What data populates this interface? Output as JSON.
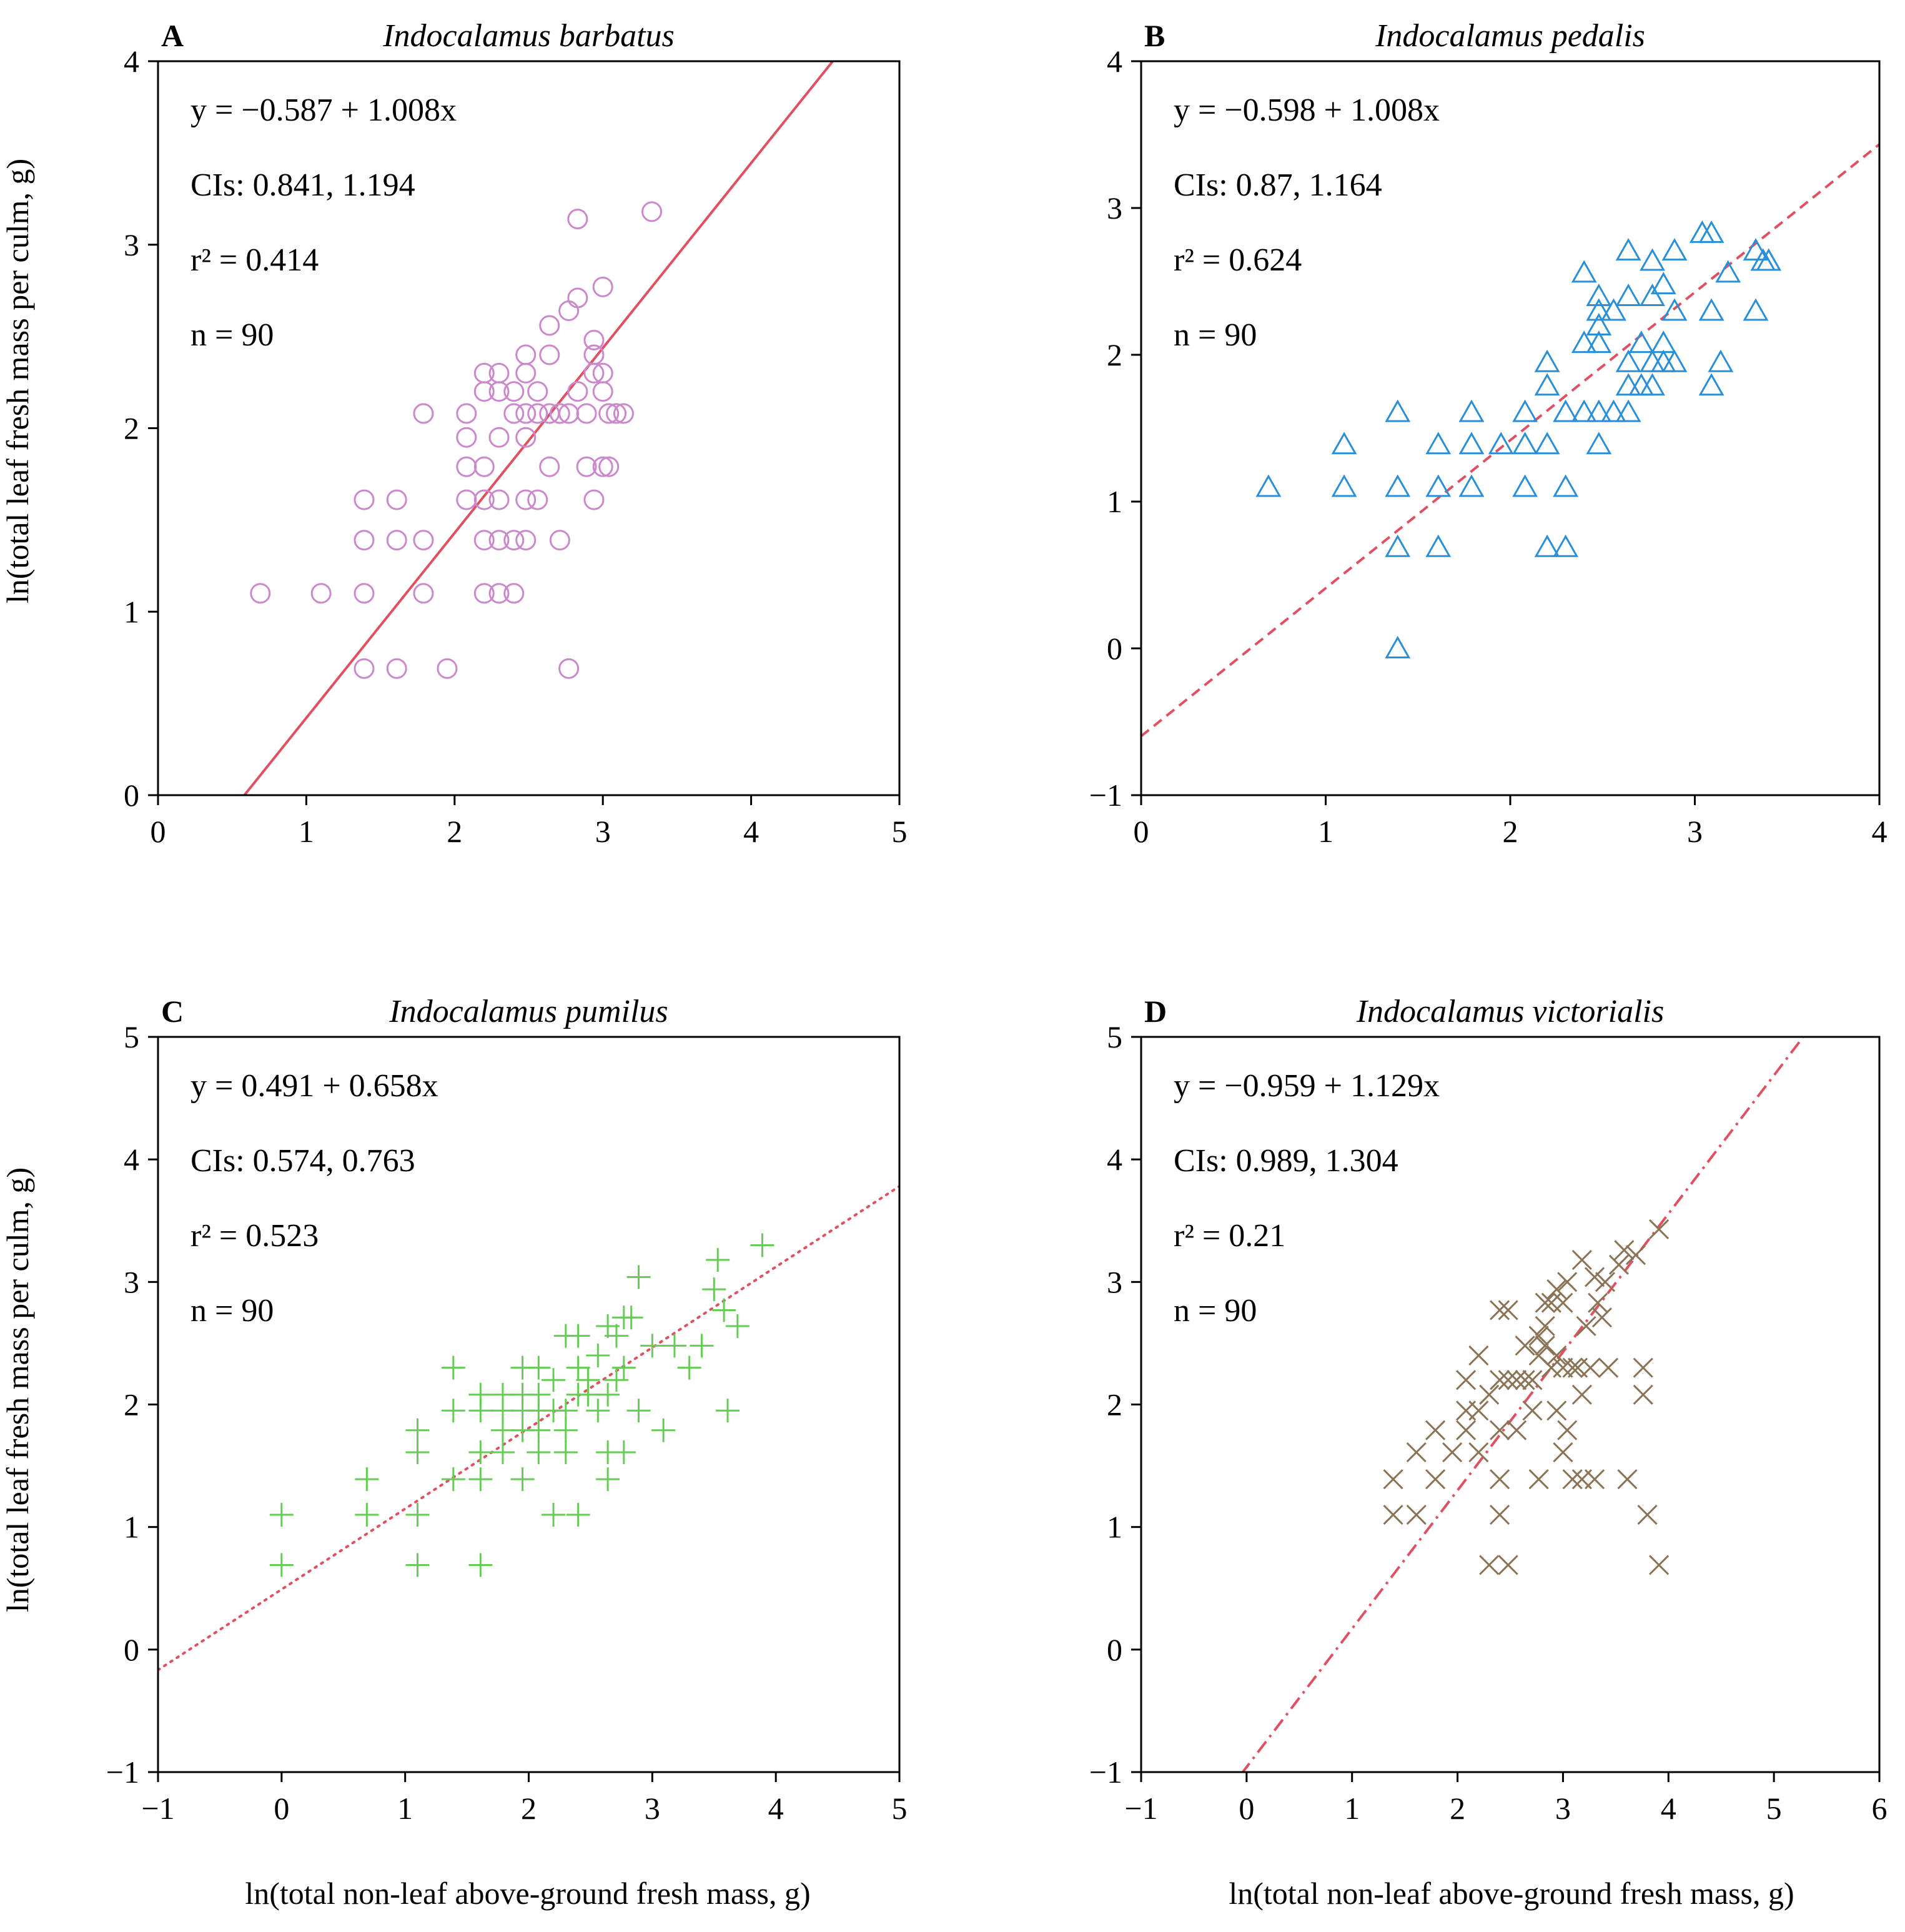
{
  "figure": {
    "xlabel_shared": "ln(total non-leaf above-ground fresh mass, g)",
    "ylabel_shared": "ln(total leaf fresh mass per culm, g)"
  },
  "chart_data": [
    {
      "panel": "A",
      "type": "scatter",
      "title": "Indocalamus barbatus",
      "xlabel": "",
      "ylabel": "ln(total leaf fresh mass per culm, g)",
      "xlim": [
        0,
        5
      ],
      "ylim": [
        0,
        4
      ],
      "xticks": [
        0,
        1,
        2,
        3,
        4,
        5
      ],
      "yticks": [
        0,
        1,
        2,
        3,
        4
      ],
      "marker": "circle",
      "marker_color": "#cc88cc",
      "line_style": "solid",
      "line_color": "#e05060",
      "fit": {
        "intercept": -0.587,
        "slope": 1.008
      },
      "annotations": {
        "equation": "y = −0.587 + 1.008x",
        "ci": "CIs: 0.841, 1.194",
        "r2": "r² = 0.414",
        "n": "n = 90"
      },
      "points": [
        [
          0.69,
          1.1
        ],
        [
          1.1,
          1.1
        ],
        [
          1.39,
          1.1
        ],
        [
          1.39,
          0.69
        ],
        [
          1.39,
          1.39
        ],
        [
          1.39,
          1.61
        ],
        [
          1.61,
          1.61
        ],
        [
          1.61,
          1.39
        ],
        [
          1.61,
          0.69
        ],
        [
          1.79,
          1.39
        ],
        [
          1.79,
          2.08
        ],
        [
          1.79,
          1.1
        ],
        [
          1.95,
          0.69
        ],
        [
          2.08,
          1.61
        ],
        [
          2.08,
          1.79
        ],
        [
          2.08,
          1.95
        ],
        [
          2.08,
          2.08
        ],
        [
          2.2,
          2.2
        ],
        [
          2.2,
          2.3
        ],
        [
          2.2,
          1.61
        ],
        [
          2.2,
          1.39
        ],
        [
          2.2,
          1.1
        ],
        [
          2.2,
          1.79
        ],
        [
          2.3,
          1.39
        ],
        [
          2.3,
          1.1
        ],
        [
          2.3,
          1.95
        ],
        [
          2.3,
          2.2
        ],
        [
          2.3,
          2.3
        ],
        [
          2.3,
          1.61
        ],
        [
          2.4,
          1.1
        ],
        [
          2.4,
          1.39
        ],
        [
          2.4,
          2.08
        ],
        [
          2.4,
          2.2
        ],
        [
          2.48,
          1.39
        ],
        [
          2.48,
          1.61
        ],
        [
          2.48,
          1.95
        ],
        [
          2.48,
          2.3
        ],
        [
          2.48,
          2.4
        ],
        [
          2.48,
          2.08
        ],
        [
          2.56,
          2.08
        ],
        [
          2.56,
          1.61
        ],
        [
          2.56,
          2.2
        ],
        [
          2.64,
          1.79
        ],
        [
          2.64,
          2.08
        ],
        [
          2.64,
          2.4
        ],
        [
          2.64,
          2.56
        ],
        [
          2.71,
          2.08
        ],
        [
          2.71,
          1.39
        ],
        [
          2.77,
          2.08
        ],
        [
          2.77,
          2.64
        ],
        [
          2.77,
          0.69
        ],
        [
          2.83,
          2.71
        ],
        [
          2.83,
          3.14
        ],
        [
          2.83,
          2.2
        ],
        [
          2.89,
          1.79
        ],
        [
          2.89,
          2.08
        ],
        [
          2.94,
          2.3
        ],
        [
          2.94,
          2.4
        ],
        [
          2.94,
          2.48
        ],
        [
          2.94,
          1.61
        ],
        [
          3.0,
          2.2
        ],
        [
          3.0,
          2.3
        ],
        [
          3.0,
          2.77
        ],
        [
          3.0,
          1.79
        ],
        [
          3.04,
          2.08
        ],
        [
          3.04,
          1.79
        ],
        [
          3.09,
          2.08
        ],
        [
          3.14,
          2.08
        ],
        [
          3.33,
          3.18
        ]
      ]
    },
    {
      "panel": "B",
      "type": "scatter",
      "title": "Indocalamus pedalis",
      "xlabel": "",
      "ylabel": "",
      "xlim": [
        0,
        4
      ],
      "ylim": [
        -1,
        4
      ],
      "xticks": [
        0,
        1,
        2,
        3,
        4
      ],
      "yticks": [
        -1,
        0,
        1,
        2,
        3,
        4
      ],
      "marker": "triangle",
      "marker_color": "#2a8fd8",
      "line_style": "dashed",
      "line_color": "#e05060",
      "fit": {
        "intercept": -0.598,
        "slope": 1.008
      },
      "annotations": {
        "equation": "y = −0.598 + 1.008x",
        "ci": "CIs: 0.87, 1.164",
        "r2": "r² = 0.624",
        "n": "n = 90"
      },
      "points": [
        [
          0.69,
          1.1
        ],
        [
          1.1,
          1.1
        ],
        [
          1.1,
          1.39
        ],
        [
          1.39,
          1.1
        ],
        [
          1.39,
          0.69
        ],
        [
          1.39,
          0.0
        ],
        [
          1.39,
          1.61
        ],
        [
          1.61,
          1.39
        ],
        [
          1.61,
          1.1
        ],
        [
          1.61,
          0.69
        ],
        [
          1.79,
          1.61
        ],
        [
          1.79,
          1.39
        ],
        [
          1.79,
          1.1
        ],
        [
          1.95,
          1.39
        ],
        [
          2.08,
          1.39
        ],
        [
          2.08,
          1.61
        ],
        [
          2.08,
          1.1
        ],
        [
          2.2,
          1.79
        ],
        [
          2.2,
          1.95
        ],
        [
          2.2,
          1.39
        ],
        [
          2.2,
          0.69
        ],
        [
          2.3,
          0.69
        ],
        [
          2.3,
          1.1
        ],
        [
          2.3,
          1.61
        ],
        [
          2.4,
          1.61
        ],
        [
          2.4,
          2.08
        ],
        [
          2.4,
          2.56
        ],
        [
          2.48,
          1.39
        ],
        [
          2.48,
          1.61
        ],
        [
          2.48,
          2.08
        ],
        [
          2.48,
          2.2
        ],
        [
          2.48,
          2.3
        ],
        [
          2.48,
          2.4
        ],
        [
          2.56,
          1.61
        ],
        [
          2.56,
          2.3
        ],
        [
          2.64,
          1.61
        ],
        [
          2.64,
          1.79
        ],
        [
          2.64,
          1.95
        ],
        [
          2.64,
          2.4
        ],
        [
          2.64,
          2.71
        ],
        [
          2.71,
          1.79
        ],
        [
          2.71,
          2.08
        ],
        [
          2.77,
          1.79
        ],
        [
          2.77,
          1.95
        ],
        [
          2.77,
          2.4
        ],
        [
          2.77,
          2.64
        ],
        [
          2.83,
          1.95
        ],
        [
          2.83,
          2.08
        ],
        [
          2.83,
          2.48
        ],
        [
          2.89,
          2.3
        ],
        [
          2.89,
          2.71
        ],
        [
          2.89,
          1.95
        ],
        [
          3.04,
          2.83
        ],
        [
          3.09,
          2.83
        ],
        [
          3.09,
          2.3
        ],
        [
          3.09,
          1.79
        ],
        [
          3.14,
          1.95
        ],
        [
          3.18,
          2.56
        ],
        [
          3.33,
          2.3
        ],
        [
          3.33,
          2.71
        ],
        [
          3.37,
          2.64
        ],
        [
          3.4,
          2.64
        ]
      ]
    },
    {
      "panel": "C",
      "type": "scatter",
      "title": "Indocalamus pumilus",
      "xlabel": "ln(total non-leaf above-ground fresh mass, g)",
      "ylabel": "ln(total leaf fresh mass per culm, g)",
      "xlim": [
        -1,
        5
      ],
      "ylim": [
        -1,
        5
      ],
      "xticks": [
        -1,
        0,
        1,
        2,
        3,
        4,
        5
      ],
      "yticks": [
        -1,
        0,
        1,
        2,
        3,
        4,
        5
      ],
      "marker": "plus",
      "marker_color": "#66cc55",
      "line_style": "dotted",
      "line_color": "#e05060",
      "fit": {
        "intercept": 0.491,
        "slope": 0.658
      },
      "annotations": {
        "equation": "y = 0.491 + 0.658x",
        "ci": "CIs: 0.574, 0.763",
        "r2": "r² = 0.523",
        "n": "n = 90"
      },
      "points": [
        [
          0.0,
          1.1
        ],
        [
          0.0,
          0.69
        ],
        [
          0.69,
          1.39
        ],
        [
          0.69,
          1.1
        ],
        [
          1.1,
          1.79
        ],
        [
          1.1,
          1.61
        ],
        [
          1.1,
          1.1
        ],
        [
          1.1,
          0.69
        ],
        [
          1.39,
          2.3
        ],
        [
          1.39,
          1.95
        ],
        [
          1.39,
          1.39
        ],
        [
          1.61,
          2.08
        ],
        [
          1.61,
          1.95
        ],
        [
          1.61,
          1.61
        ],
        [
          1.61,
          1.39
        ],
        [
          1.61,
          0.69
        ],
        [
          1.79,
          2.08
        ],
        [
          1.79,
          1.95
        ],
        [
          1.79,
          1.79
        ],
        [
          1.79,
          1.61
        ],
        [
          1.95,
          2.3
        ],
        [
          1.95,
          2.08
        ],
        [
          1.95,
          1.95
        ],
        [
          1.95,
          1.79
        ],
        [
          1.95,
          1.39
        ],
        [
          2.08,
          2.3
        ],
        [
          2.08,
          2.08
        ],
        [
          2.08,
          1.95
        ],
        [
          2.08,
          1.79
        ],
        [
          2.08,
          1.61
        ],
        [
          2.2,
          2.2
        ],
        [
          2.2,
          1.95
        ],
        [
          2.2,
          1.1
        ],
        [
          2.3,
          2.56
        ],
        [
          2.3,
          1.95
        ],
        [
          2.3,
          1.79
        ],
        [
          2.3,
          1.61
        ],
        [
          2.4,
          2.56
        ],
        [
          2.4,
          2.3
        ],
        [
          2.4,
          2.08
        ],
        [
          2.4,
          1.1
        ],
        [
          2.48,
          2.2
        ],
        [
          2.48,
          2.08
        ],
        [
          2.56,
          2.4
        ],
        [
          2.56,
          1.95
        ],
        [
          2.64,
          2.64
        ],
        [
          2.64,
          2.08
        ],
        [
          2.64,
          1.61
        ],
        [
          2.64,
          1.39
        ],
        [
          2.71,
          2.56
        ],
        [
          2.71,
          2.2
        ],
        [
          2.77,
          2.71
        ],
        [
          2.77,
          2.3
        ],
        [
          2.77,
          1.61
        ],
        [
          2.83,
          2.71
        ],
        [
          2.89,
          3.04
        ],
        [
          2.89,
          1.95
        ],
        [
          3.0,
          2.48
        ],
        [
          3.09,
          1.79
        ],
        [
          3.18,
          2.48
        ],
        [
          3.3,
          2.3
        ],
        [
          3.4,
          2.48
        ],
        [
          3.5,
          2.94
        ],
        [
          3.53,
          3.18
        ],
        [
          3.58,
          2.77
        ],
        [
          3.61,
          1.95
        ],
        [
          3.69,
          2.64
        ],
        [
          3.89,
          3.3
        ]
      ]
    },
    {
      "panel": "D",
      "type": "scatter",
      "title": "Indocalamus victorialis",
      "xlabel": "ln(total non-leaf above-ground fresh mass, g)",
      "ylabel": "",
      "xlim": [
        -1,
        6
      ],
      "ylim": [
        -1,
        5
      ],
      "xticks": [
        -1,
        0,
        1,
        2,
        3,
        4,
        5,
        6
      ],
      "yticks": [
        -1,
        0,
        1,
        2,
        3,
        4,
        5
      ],
      "marker": "cross",
      "marker_color": "#8b7355",
      "line_style": "dashdot",
      "line_color": "#e05060",
      "fit": {
        "intercept": -0.959,
        "slope": 1.129
      },
      "annotations": {
        "equation": "y = −0.959 + 1.129x",
        "ci": "CIs: 0.989, 1.304",
        "r2": "r² = 0.21",
        "n": "n = 90"
      },
      "points": [
        [
          1.39,
          1.39
        ],
        [
          1.39,
          1.1
        ],
        [
          1.61,
          1.61
        ],
        [
          1.61,
          1.1
        ],
        [
          1.79,
          1.79
        ],
        [
          1.79,
          1.39
        ],
        [
          1.95,
          1.61
        ],
        [
          2.08,
          1.95
        ],
        [
          2.08,
          1.79
        ],
        [
          2.08,
          2.2
        ],
        [
          2.2,
          2.4
        ],
        [
          2.2,
          1.95
        ],
        [
          2.2,
          1.61
        ],
        [
          2.3,
          2.08
        ],
        [
          2.3,
          0.69
        ],
        [
          2.4,
          2.77
        ],
        [
          2.4,
          2.2
        ],
        [
          2.4,
          1.79
        ],
        [
          2.4,
          1.39
        ],
        [
          2.4,
          1.1
        ],
        [
          2.48,
          2.77
        ],
        [
          2.48,
          2.2
        ],
        [
          2.48,
          0.69
        ],
        [
          2.56,
          2.2
        ],
        [
          2.56,
          1.79
        ],
        [
          2.64,
          2.48
        ],
        [
          2.64,
          2.2
        ],
        [
          2.71,
          2.2
        ],
        [
          2.71,
          1.95
        ],
        [
          2.77,
          2.56
        ],
        [
          2.77,
          2.4
        ],
        [
          2.77,
          1.39
        ],
        [
          2.83,
          2.83
        ],
        [
          2.83,
          2.64
        ],
        [
          2.83,
          2.48
        ],
        [
          2.89,
          2.83
        ],
        [
          2.89,
          2.3
        ],
        [
          2.94,
          2.94
        ],
        [
          2.94,
          2.4
        ],
        [
          2.94,
          1.95
        ],
        [
          3.0,
          2.83
        ],
        [
          3.0,
          2.3
        ],
        [
          3.0,
          1.61
        ],
        [
          3.04,
          3.0
        ],
        [
          3.04,
          1.79
        ],
        [
          3.09,
          2.3
        ],
        [
          3.09,
          1.39
        ],
        [
          3.14,
          2.3
        ],
        [
          3.18,
          3.18
        ],
        [
          3.18,
          2.08
        ],
        [
          3.18,
          1.39
        ],
        [
          3.22,
          2.64
        ],
        [
          3.26,
          2.3
        ],
        [
          3.3,
          3.04
        ],
        [
          3.3,
          1.39
        ],
        [
          3.33,
          2.83
        ],
        [
          3.37,
          2.71
        ],
        [
          3.4,
          3.0
        ],
        [
          3.43,
          2.3
        ],
        [
          3.53,
          3.14
        ],
        [
          3.58,
          3.26
        ],
        [
          3.61,
          1.39
        ],
        [
          3.69,
          3.22
        ],
        [
          3.76,
          2.3
        ],
        [
          3.76,
          2.08
        ],
        [
          3.8,
          1.1
        ],
        [
          3.91,
          3.43
        ],
        [
          3.91,
          0.69
        ]
      ]
    }
  ]
}
